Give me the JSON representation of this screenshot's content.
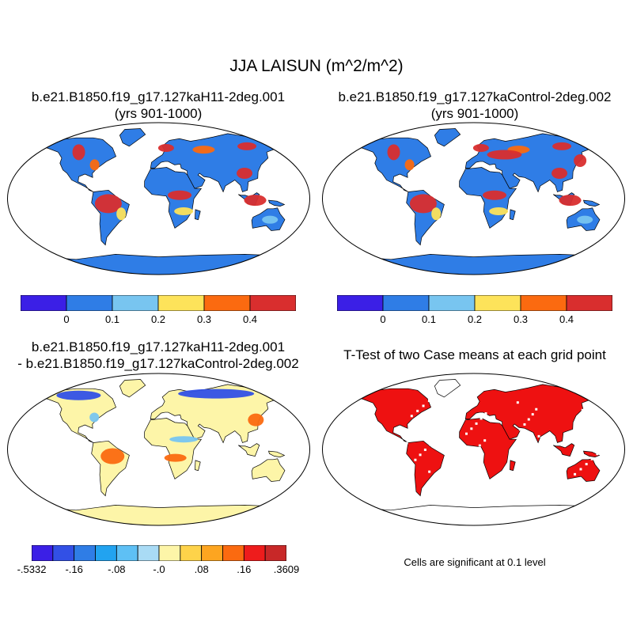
{
  "title": "JJA LAISUN (m^2/m^2)",
  "panels": {
    "case1": {
      "title_line1": "b.e21.B1850.f19_g17.127kaH11-2deg.001",
      "title_line2": "(yrs 901-1000)"
    },
    "case2": {
      "title_line1": "b.e21.B1850.f19_g17.127kaControl-2deg.002",
      "title_line2": "(yrs 901-1000)"
    },
    "diff": {
      "title_line1": "b.e21.B1850.f19_g17.127kaH11-2deg.001",
      "title_line2": "- b.e21.B1850.f19_g17.127kaControl-2deg.002"
    },
    "ttest": {
      "title": "T-Test of two Case means at each grid point",
      "note": "Cells are significant at 0.1 level"
    }
  },
  "colorbar_main": {
    "colors": [
      "#3b1fe6",
      "#2f7de6",
      "#78c5f0",
      "#fde35a",
      "#fb6a10",
      "#d92e2e"
    ],
    "tick_labels": [
      "0",
      "0.1",
      "0.2",
      "0.3",
      "0.4"
    ]
  },
  "colorbar_diff": {
    "colors": [
      "#3b1fe6",
      "#3250e6",
      "#2f7de6",
      "#22a3f0",
      "#5ec0f5",
      "#a9dbf5",
      "#fdf5a8",
      "#fed34a",
      "#fda520",
      "#fb6a10",
      "#ee1c1c",
      "#c82828"
    ],
    "tick_labels": [
      "-.5332",
      "-.16",
      "-.08",
      "-.0",
      ".08",
      ".16",
      ".3609"
    ]
  },
  "map_colors": {
    "case_background": "#2f7de6",
    "hotspot": "#d92e2e",
    "orange": "#fb6a10",
    "yellow": "#fde35a",
    "light_blue": "#78c5f0",
    "diff_background": "#fdf5a8",
    "diff_blue": "#3250e6",
    "significant": "#ee1111"
  }
}
